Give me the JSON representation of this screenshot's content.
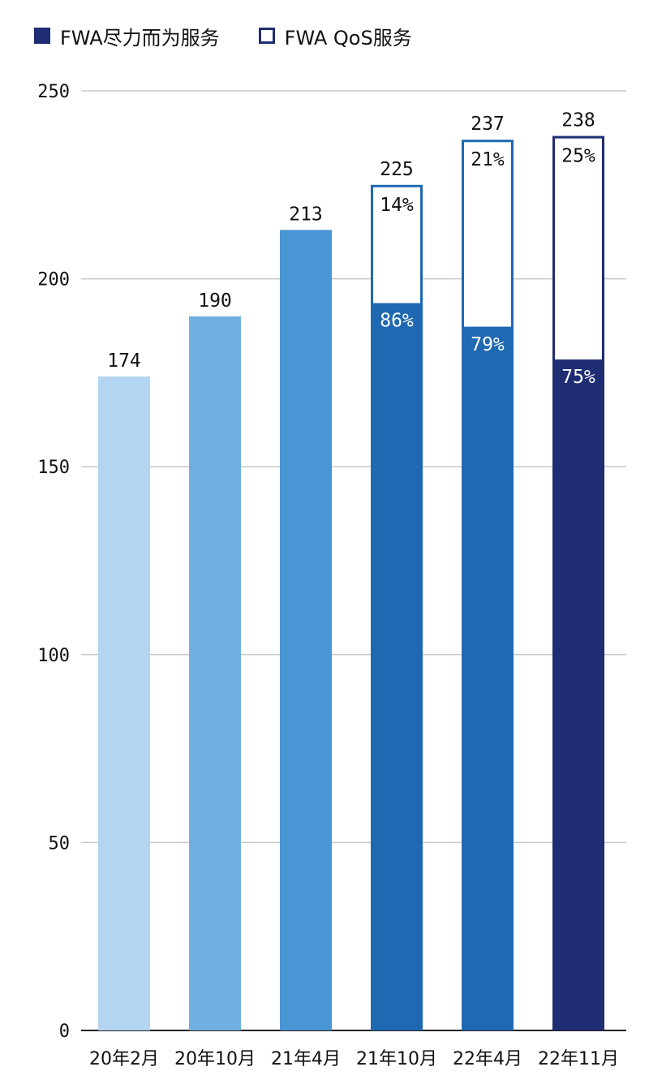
{
  "chart_data": {
    "type": "bar",
    "stacked": true,
    "categories": [
      "20年2月",
      "20年10月",
      "21年4月",
      "21年10月",
      "22年4月",
      "22年11月"
    ],
    "totals": [
      174,
      190,
      213,
      225,
      237,
      238
    ],
    "series": [
      {
        "name": "FWA尽力而为服务",
        "shares": [
          null,
          null,
          null,
          "86%",
          "79%",
          "75%"
        ]
      },
      {
        "name": "FWA QoS服务",
        "shares": [
          null,
          null,
          null,
          "14%",
          "21%",
          "25%"
        ]
      }
    ],
    "best_effort_fraction": [
      1,
      1,
      1,
      0.86,
      0.79,
      0.75
    ],
    "ylim": [
      0,
      250
    ],
    "yticks": [
      0,
      50,
      100,
      150,
      200,
      250
    ],
    "grid": true,
    "legend_position": "top-left",
    "colors": {
      "bars": [
        "#b3d5f1",
        "#6fb0e0",
        "#4a95d3",
        "#1f69b2",
        "#1f69b2",
        "#1f2d73"
      ],
      "legend_solid": "#1f2d73",
      "legend_outline": "#1f2d73",
      "grid": "#c8c8c8",
      "axis": "#222222"
    }
  }
}
